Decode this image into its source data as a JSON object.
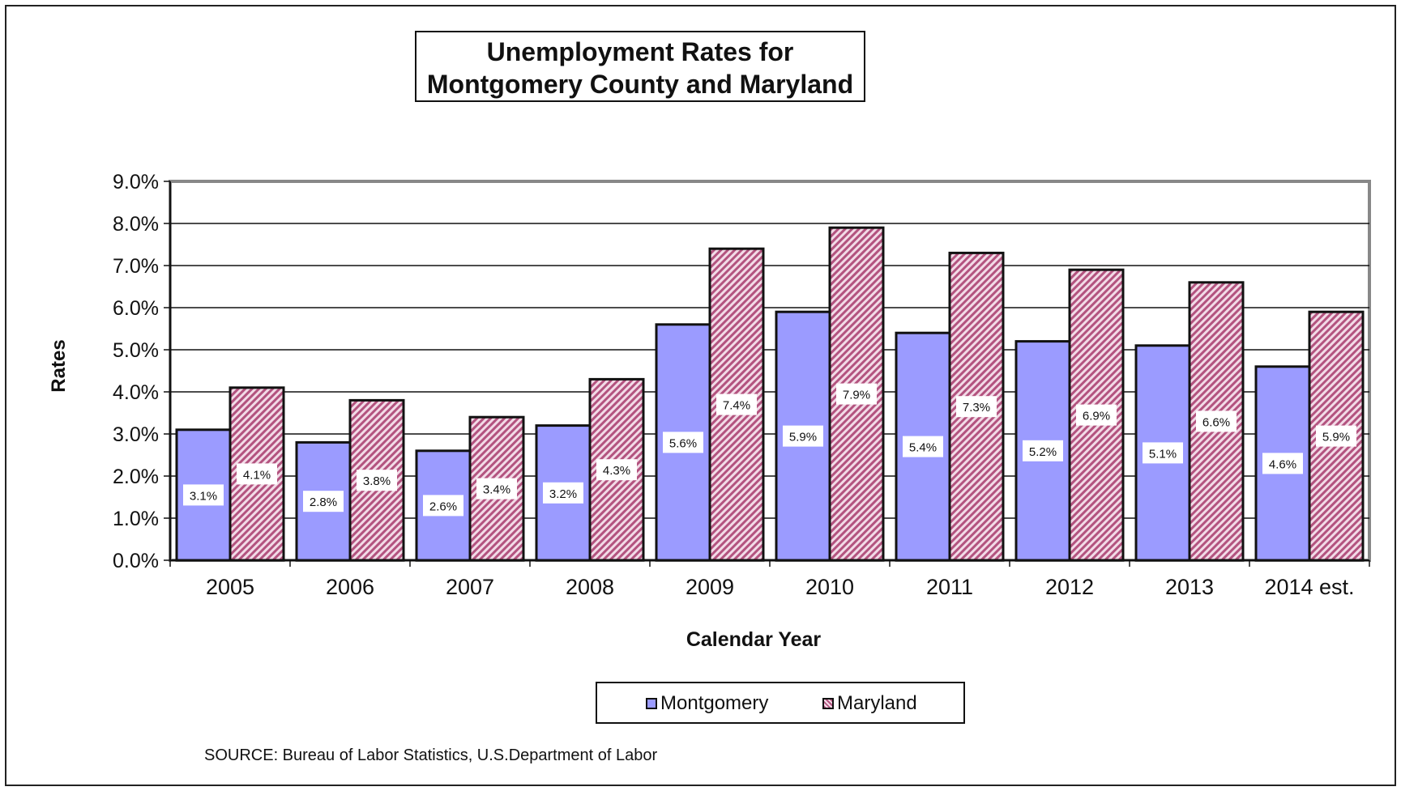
{
  "chart_data": {
    "type": "bar",
    "title_lines": [
      "Unemployment Rates for",
      "Montgomery County and Maryland"
    ],
    "xlabel": "Calendar Year",
    "ylabel": "Rates",
    "ylim": [
      0,
      9
    ],
    "yticks": [
      "0.0%",
      "1.0%",
      "2.0%",
      "3.0%",
      "4.0%",
      "5.0%",
      "6.0%",
      "7.0%",
      "8.0%",
      "9.0%"
    ],
    "categories": [
      "2005",
      "2006",
      "2007",
      "2008",
      "2009",
      "2010",
      "2011",
      "2012",
      "2013",
      "2014 est."
    ],
    "series": [
      {
        "name": "Montgomery",
        "values": [
          3.1,
          2.8,
          2.6,
          3.2,
          5.6,
          5.9,
          5.4,
          5.2,
          5.1,
          4.6
        ],
        "labels": [
          "3.1%",
          "2.8%",
          "2.6%",
          "3.2%",
          "5.6%",
          "5.9%",
          "5.4%",
          "5.2%",
          "5.1%",
          "4.6%"
        ],
        "color": "#9b9bff"
      },
      {
        "name": "Maryland",
        "values": [
          4.1,
          3.8,
          3.4,
          4.3,
          7.4,
          7.9,
          7.3,
          6.9,
          6.6,
          5.9
        ],
        "labels": [
          "4.1%",
          "3.8%",
          "3.4%",
          "4.3%",
          "7.4%",
          "7.9%",
          "7.3%",
          "6.9%",
          "6.6%",
          "5.9%"
        ],
        "color": "#b3537f"
      }
    ],
    "grid": true,
    "legend_position": "bottom"
  },
  "source": "SOURCE:  Bureau of Labor Statistics, U.S.Department of Labor"
}
